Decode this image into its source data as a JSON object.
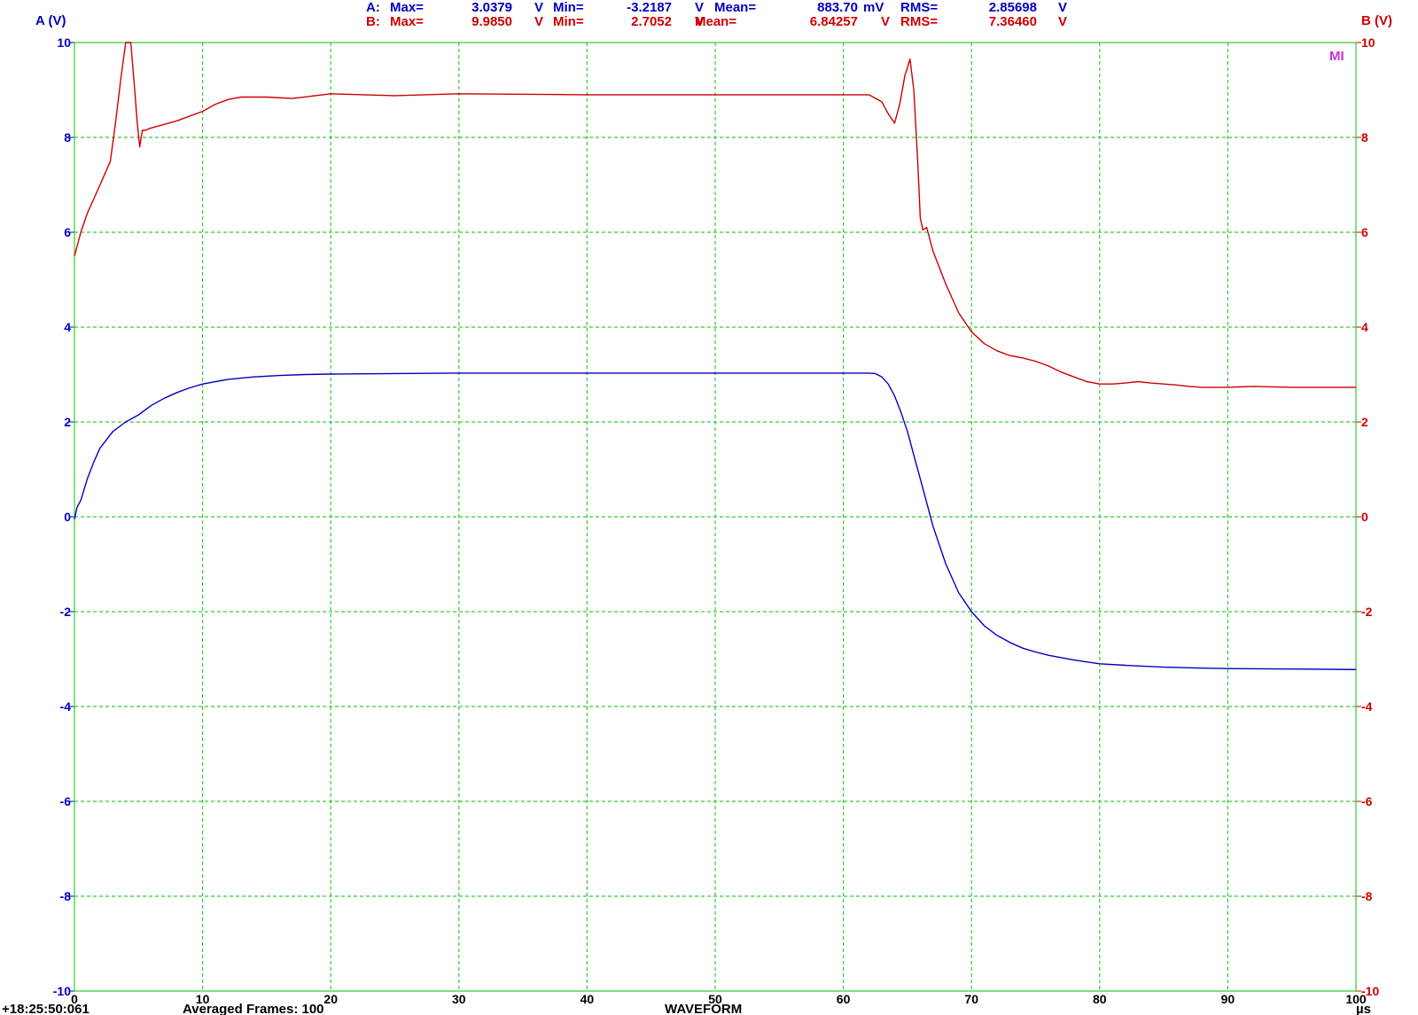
{
  "stats": {
    "a": {
      "prefix": "A:",
      "max_label": "Max=",
      "max_value": "3.0379",
      "max_unit": "V",
      "min_label": "Min=",
      "min_value": "-3.2187",
      "min_unit": "V",
      "mean_label": "Mean=",
      "mean_value": "883.70",
      "mean_unit": "mV",
      "rms_label": "RMS=",
      "rms_value": "2.85698",
      "rms_unit": "V",
      "color": "#0000c0"
    },
    "b": {
      "prefix": "B:",
      "max_label": "Max=",
      "max_value": "9.9850",
      "max_unit": "V",
      "min_label": "Min=",
      "min_value": "2.7052",
      "min_unit": "V",
      "mean_label": "Mean=",
      "mean_value": "6.84257",
      "mean_unit": "V",
      "rms_label": "RMS=",
      "rms_value": "7.36460",
      "rms_unit": "V",
      "color": "#cc0000"
    }
  },
  "marker": {
    "label": "MI",
    "color": "#cc33cc"
  },
  "footer": {
    "timestamp": "+18:25:50:061",
    "frames": "Averaged Frames: 100",
    "mode": "WAVEFORM"
  },
  "chart_data": {
    "type": "line",
    "xlabel": "µs",
    "x_ticks": [
      "0",
      "10",
      "20",
      "30",
      "40",
      "50",
      "60",
      "70",
      "80",
      "90",
      "100"
    ],
    "xlim": [
      0,
      100
    ],
    "left_axis": {
      "label": "A (V)",
      "ylim": [
        -10,
        10
      ],
      "color": "#0000c0",
      "ticks": [
        "10",
        "8",
        "6",
        "4",
        "2",
        "0",
        "-2",
        "-4",
        "-6",
        "-8",
        "-10"
      ]
    },
    "right_axis": {
      "label": "B (V)",
      "ylim": [
        -10,
        10
      ],
      "color": "#cc0000",
      "ticks": [
        "10",
        "8",
        "6",
        "4",
        "2",
        "0",
        "-2",
        "-4",
        "-6",
        "-8",
        "-10"
      ]
    },
    "grid": true,
    "grid_color": "#33cc33",
    "series": [
      {
        "name": "A",
        "color": "#0000c0",
        "axis": "left",
        "x": [
          0,
          0.2,
          0.5,
          1,
          1.5,
          2,
          3,
          4,
          5,
          6,
          7,
          8,
          9,
          10,
          12,
          14,
          16,
          18,
          20,
          25,
          30,
          40,
          50,
          55,
          60,
          62,
          62.5,
          63,
          63.5,
          64,
          64.5,
          65,
          65.5,
          66,
          66.5,
          67,
          68,
          69,
          70,
          71,
          72,
          73,
          74,
          75,
          76,
          78,
          80,
          82,
          85,
          88,
          90,
          95,
          100
        ],
        "y": [
          -0.05,
          0.2,
          0.35,
          0.8,
          1.15,
          1.45,
          1.8,
          2.0,
          2.15,
          2.35,
          2.5,
          2.62,
          2.72,
          2.8,
          2.9,
          2.95,
          2.98,
          3.0,
          3.01,
          3.02,
          3.03,
          3.03,
          3.03,
          3.03,
          3.03,
          3.03,
          3.02,
          2.95,
          2.8,
          2.55,
          2.2,
          1.8,
          1.3,
          0.8,
          0.3,
          -0.2,
          -1.0,
          -1.6,
          -2.0,
          -2.3,
          -2.5,
          -2.65,
          -2.77,
          -2.85,
          -2.92,
          -3.02,
          -3.1,
          -3.13,
          -3.17,
          -3.19,
          -3.2,
          -3.21,
          -3.22
        ]
      },
      {
        "name": "B",
        "color": "#cc0000",
        "axis": "right",
        "x": [
          0,
          0.5,
          1,
          2,
          2.8,
          3.2,
          3.6,
          4,
          4.4,
          4.7,
          4.9,
          5.1,
          5.3,
          5.5,
          6,
          8,
          10,
          11,
          12,
          13,
          15,
          17,
          20,
          25,
          30,
          40,
          50,
          60,
          62,
          63,
          63.5,
          64,
          64.4,
          64.8,
          65.2,
          65.5,
          65.8,
          66,
          66.2,
          66.5,
          67,
          68,
          69,
          70,
          71,
          72,
          73,
          74,
          75,
          76,
          77,
          78,
          79,
          80,
          81,
          82,
          83,
          84,
          85,
          86,
          87,
          88,
          90,
          92,
          95,
          100
        ],
        "y": [
          5.5,
          6.0,
          6.4,
          7.0,
          7.5,
          8.3,
          9.2,
          10.0,
          10.0,
          9.0,
          8.3,
          7.8,
          8.15,
          8.15,
          8.2,
          8.35,
          8.55,
          8.7,
          8.8,
          8.85,
          8.85,
          8.82,
          8.92,
          8.88,
          8.92,
          8.9,
          8.9,
          8.9,
          8.9,
          8.75,
          8.5,
          8.3,
          8.7,
          9.3,
          9.65,
          9.0,
          7.5,
          6.3,
          6.05,
          6.1,
          5.6,
          4.9,
          4.3,
          3.9,
          3.65,
          3.5,
          3.4,
          3.35,
          3.28,
          3.18,
          3.05,
          2.95,
          2.85,
          2.8,
          2.8,
          2.82,
          2.85,
          2.82,
          2.8,
          2.78,
          2.75,
          2.73,
          2.73,
          2.75,
          2.73,
          2.73
        ]
      }
    ]
  }
}
